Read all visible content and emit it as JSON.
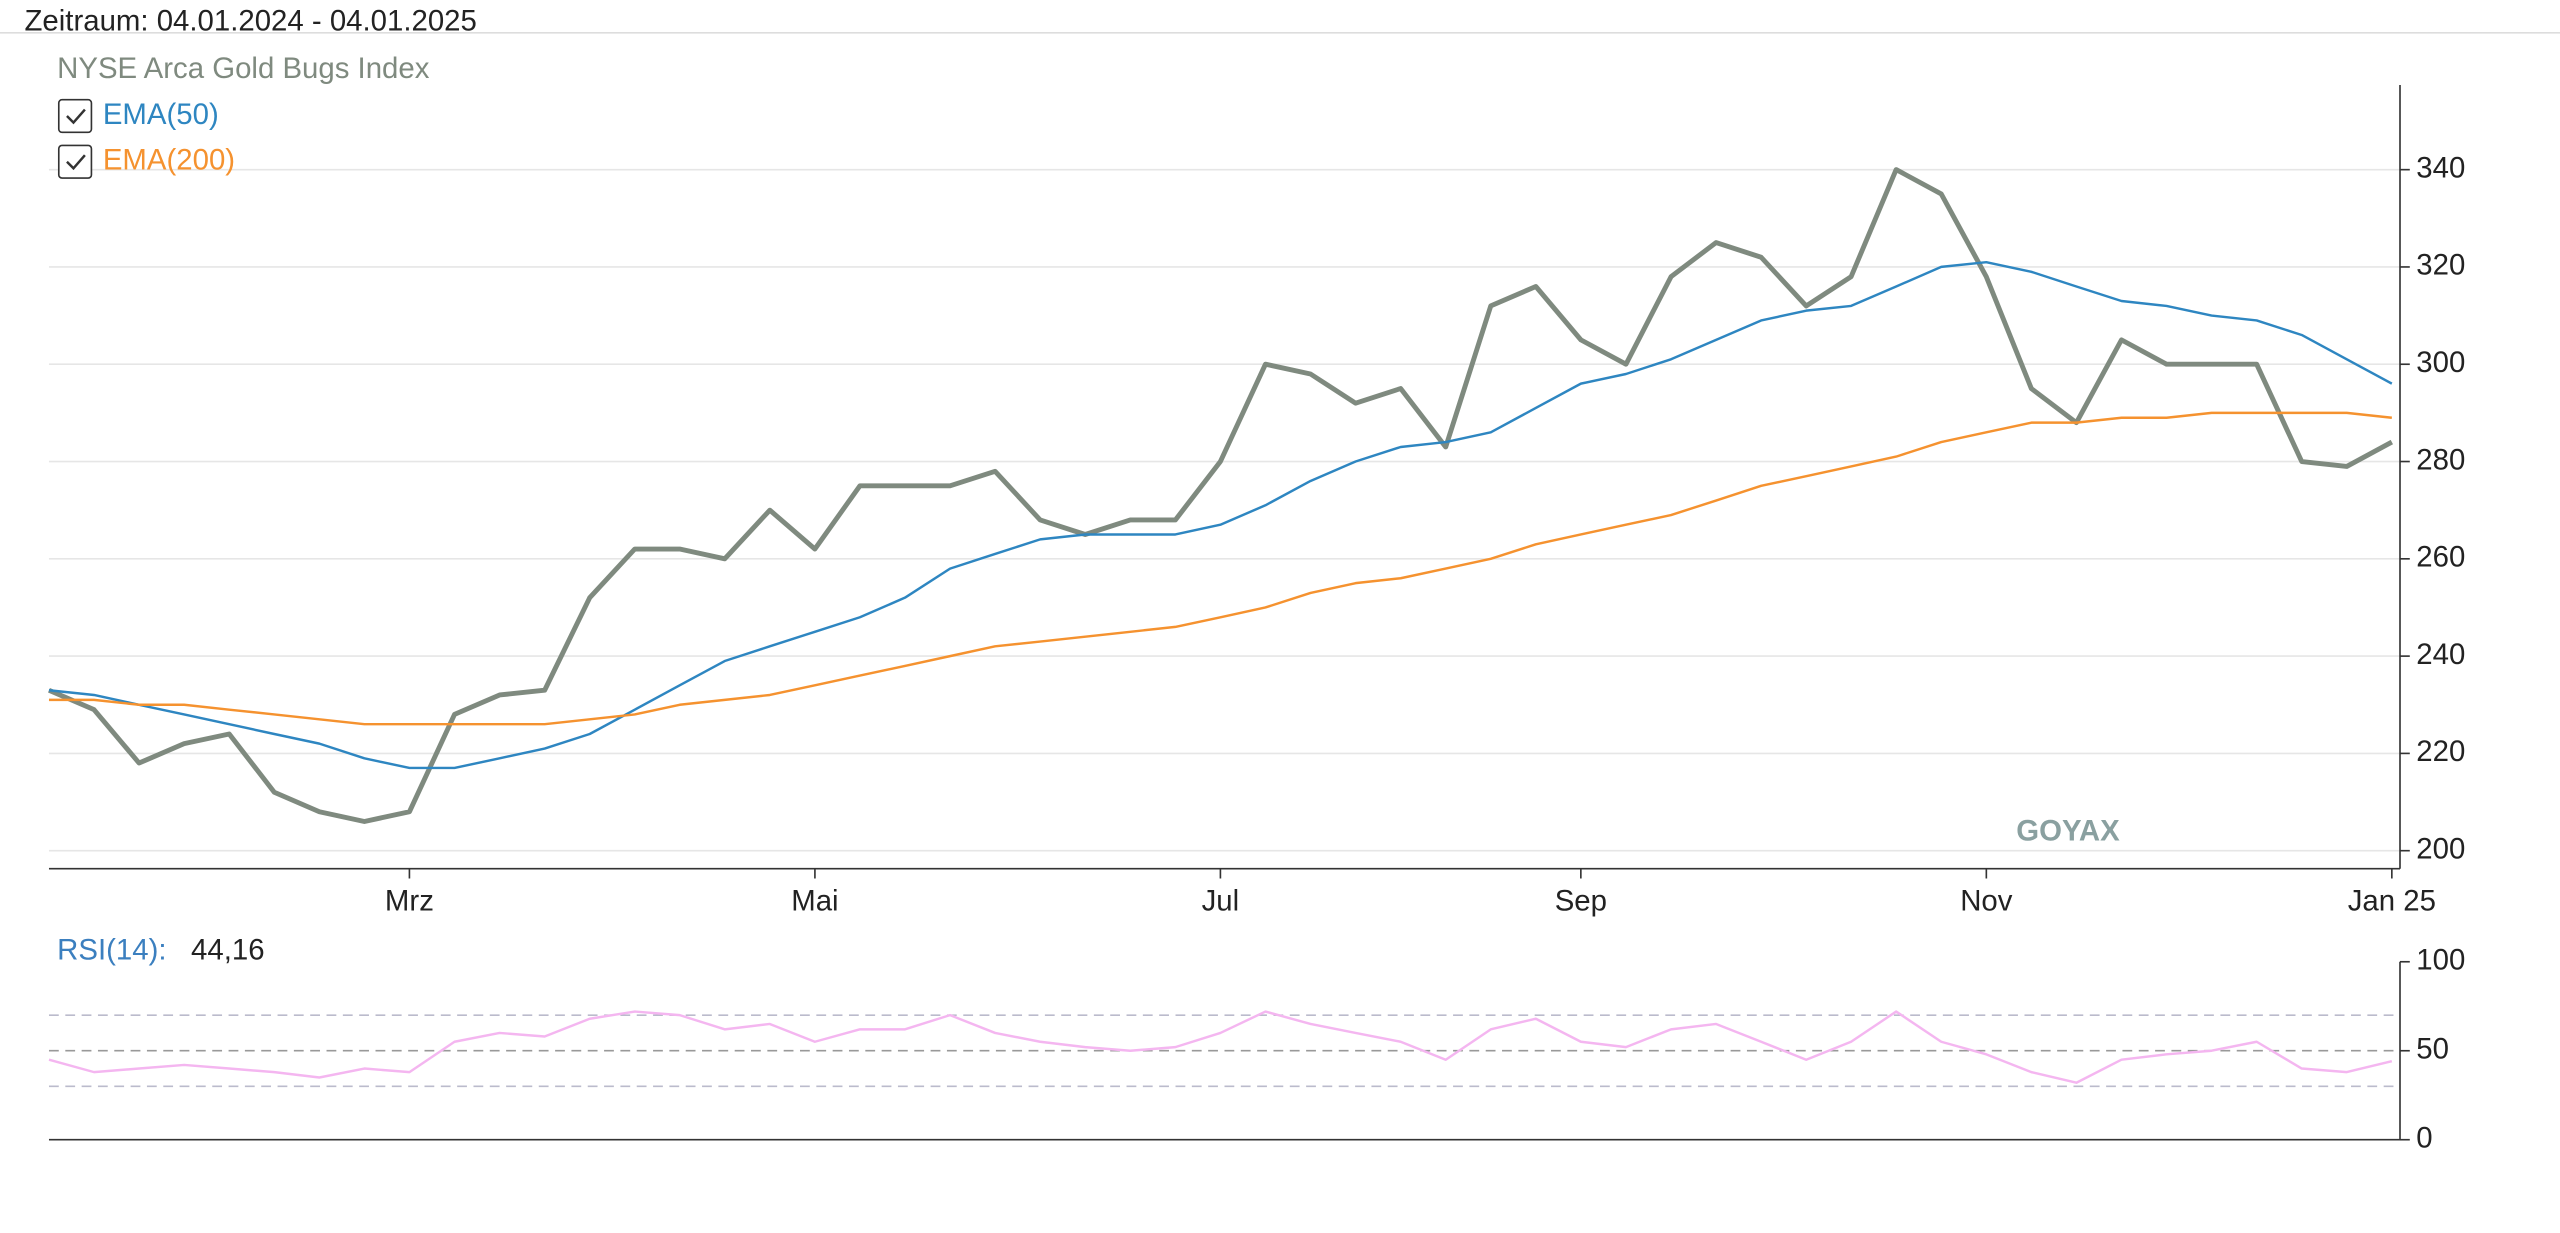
{
  "header": "Zeitraum: 04.01.2024 - 04.01.2025",
  "chart_data": [
    {
      "type": "line",
      "watermark": "GOYAX",
      "categories": [
        null,
        null,
        null,
        null,
        null,
        null,
        null,
        null,
        "Mrz",
        null,
        null,
        null,
        null,
        null,
        null,
        null,
        null,
        "Mai",
        null,
        null,
        null,
        null,
        null,
        null,
        null,
        null,
        "Jul",
        null,
        null,
        null,
        null,
        null,
        null,
        null,
        "Sep",
        null,
        null,
        null,
        null,
        null,
        null,
        null,
        null,
        "Nov",
        null,
        null,
        null,
        null,
        null,
        null,
        null,
        null,
        "Jan 25"
      ],
      "series": [
        {
          "name": "NYSE Arca Gold Bugs Index",
          "color": "#7f8a7f",
          "values": [
            233,
            229,
            218,
            222,
            224,
            212,
            208,
            206,
            208,
            228,
            232,
            233,
            252,
            262,
            262,
            260,
            270,
            262,
            275,
            275,
            275,
            278,
            268,
            265,
            268,
            268,
            280,
            300,
            298,
            292,
            295,
            283,
            312,
            316,
            305,
            300,
            318,
            325,
            322,
            312,
            318,
            340,
            335,
            318,
            295,
            288,
            305,
            300,
            300,
            300,
            280,
            279,
            284
          ]
        },
        {
          "name": "EMA(50)",
          "color": "#2e86c1",
          "values": [
            233,
            232,
            230,
            228,
            226,
            224,
            222,
            219,
            217,
            217,
            219,
            221,
            224,
            229,
            234,
            239,
            242,
            245,
            248,
            252,
            258,
            261,
            264,
            265,
            265,
            265,
            267,
            271,
            276,
            280,
            283,
            284,
            286,
            291,
            296,
            298,
            301,
            305,
            309,
            311,
            312,
            316,
            320,
            321,
            319,
            316,
            313,
            312,
            310,
            309,
            306,
            301,
            296
          ]
        },
        {
          "name": "EMA(200)",
          "color": "#f5922f",
          "values": [
            231,
            231,
            230,
            230,
            229,
            228,
            227,
            226,
            226,
            226,
            226,
            226,
            227,
            228,
            230,
            231,
            232,
            234,
            236,
            238,
            240,
            242,
            243,
            244,
            245,
            246,
            248,
            250,
            253,
            255,
            256,
            258,
            260,
            263,
            265,
            267,
            269,
            272,
            275,
            277,
            279,
            281,
            284,
            286,
            288,
            288,
            289,
            289,
            290,
            290,
            290,
            290,
            289
          ]
        }
      ],
      "ylim": [
        196.3,
        357.4
      ],
      "yticks": [
        200,
        220,
        240,
        260,
        280,
        300,
        320,
        340
      ],
      "grid": true
    },
    {
      "type": "line",
      "series": [
        {
          "name": "RSI(14):",
          "color": "#f4b6f0",
          "values": [
            45,
            38,
            40,
            42,
            40,
            38,
            35,
            40,
            38,
            55,
            60,
            58,
            68,
            72,
            70,
            62,
            65,
            55,
            62,
            62,
            70,
            60,
            55,
            52,
            50,
            52,
            60,
            72,
            65,
            60,
            55,
            45,
            62,
            68,
            55,
            52,
            62,
            65,
            55,
            45,
            55,
            72,
            55,
            48,
            38,
            32,
            45,
            48,
            50,
            55,
            40,
            38,
            44.16
          ],
          "value_label": "44,16"
        }
      ],
      "levels": [
        30,
        50,
        70
      ],
      "ylim": [
        0,
        100
      ],
      "yticks": [
        0,
        50,
        100
      ]
    }
  ]
}
